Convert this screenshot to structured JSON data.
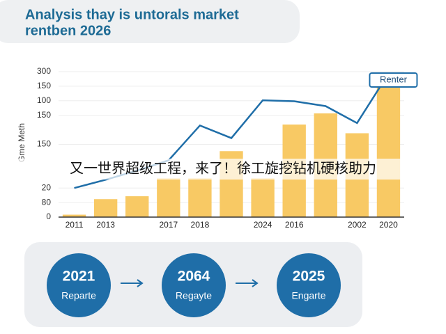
{
  "chart_data": {
    "type": "bar",
    "title": [
      "Analysis thay is untorals market",
      "rentben 2026"
    ],
    "ylabel": "Gme Meth",
    "annotation": "Renter",
    "categories": [
      "2011",
      "2013",
      null,
      "2017",
      "2018",
      null,
      "2024",
      "2016",
      null,
      "2002",
      "2020"
    ],
    "series": [
      {
        "type": "bar",
        "color": "#f8c964",
        "values": [
          5,
          37,
          43,
          80,
          80,
          136,
          80,
          191,
          214,
          173,
          277
        ]
      },
      {
        "type": "line",
        "color": "#1f6ea8",
        "values": [
          60,
          77,
          96,
          117,
          189,
          163,
          241,
          239,
          229,
          194,
          296
        ]
      }
    ],
    "ylim": [
      0,
      300
    ],
    "yticks": [
      {
        "value": 0,
        "label": "0"
      },
      {
        "value": 30,
        "label": "80"
      },
      {
        "value": 60,
        "label": "20"
      },
      150,
      {
        "value": 210,
        "label": "150"
      },
      {
        "value": 240,
        "label": "100"
      },
      {
        "value": 270,
        "label": "150"
      },
      300
    ],
    "grid": true
  },
  "banner": "又一世界超级工程，来了！徐工旋挖钻机硬核助力",
  "steps": [
    {
      "year": "2021",
      "label": "Reparte"
    },
    {
      "year": "2064",
      "label": "Regayte"
    },
    {
      "year": "2025",
      "label": "Engarte"
    }
  ]
}
